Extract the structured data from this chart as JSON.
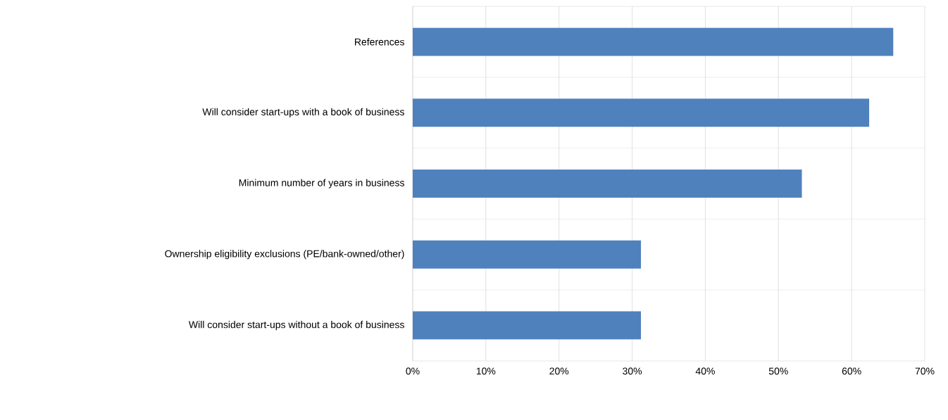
{
  "chart_data": {
    "type": "bar",
    "orientation": "horizontal",
    "categories": [
      "References",
      "Will consider start-ups with a book of business",
      "Minimum number of years in business",
      "Ownership eligibility exclusions (PE/bank-owned/other)",
      "Will consider start-ups without a book of business"
    ],
    "values": [
      65.7,
      62.4,
      53.2,
      31.2,
      31.2
    ],
    "color": "#4f81bd",
    "xlim": [
      0,
      70
    ],
    "xticks": [
      {
        "value": 0,
        "label": "0%"
      },
      {
        "value": 10,
        "label": "10%"
      },
      {
        "value": 20,
        "label": "20%"
      },
      {
        "value": 30,
        "label": "30%"
      },
      {
        "value": 40,
        "label": "40%"
      },
      {
        "value": 50,
        "label": "50%"
      },
      {
        "value": 60,
        "label": "60%"
      },
      {
        "value": 70,
        "label": "70%"
      }
    ],
    "grid": true
  }
}
